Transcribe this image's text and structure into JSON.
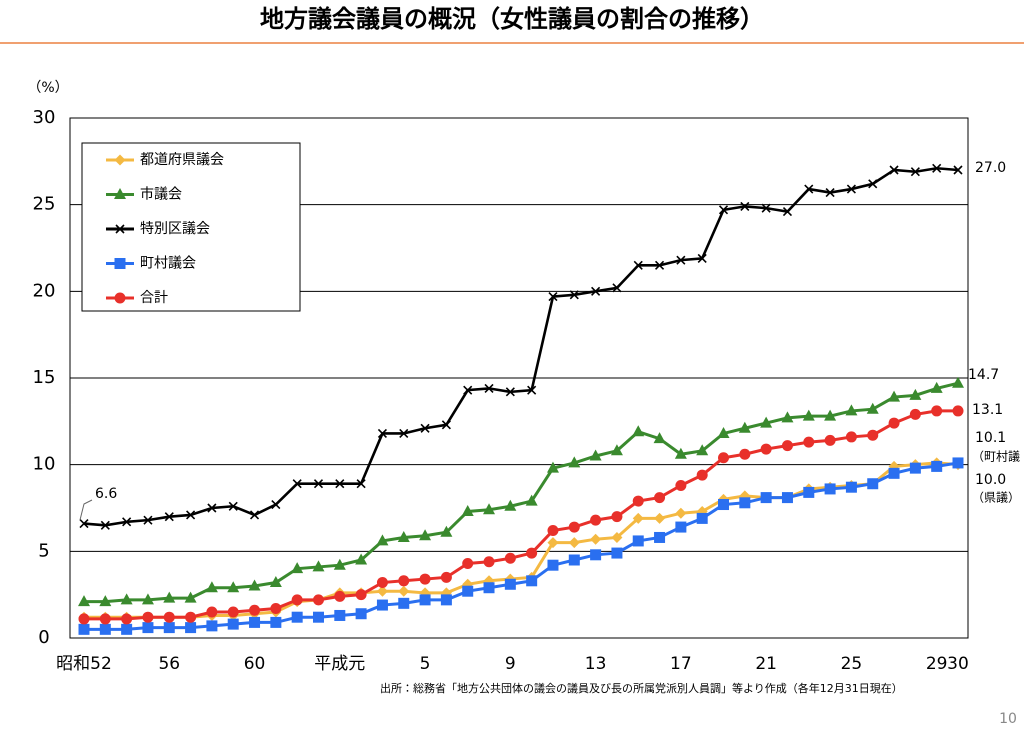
{
  "title": "地方議会議員の概況（女性議員の割合の推移）",
  "page_number": "10",
  "chart_data": {
    "type": "line",
    "y_label": "（%）",
    "source": "出所：総務省「地方公共団体の議会の議員及び長の所属党派別人員調」等より作成（各年12月31日現在）",
    "categories": [
      "昭和52",
      null,
      null,
      null,
      "56",
      null,
      null,
      null,
      "60",
      null,
      null,
      null,
      "平成元",
      null,
      null,
      null,
      "5",
      null,
      null,
      null,
      "9",
      null,
      null,
      null,
      "13",
      null,
      null,
      null,
      "17",
      null,
      null,
      null,
      "21",
      null,
      null,
      null,
      "25",
      null,
      null,
      null,
      "29",
      "30"
    ],
    "ylim": [
      0,
      30
    ],
    "yticks": [
      0,
      5,
      10,
      15,
      20,
      25,
      30
    ],
    "grid": true,
    "legend": "top-left",
    "series": [
      {
        "name": "都道府県議会",
        "color": "#f4b942",
        "marker": "diamond",
        "values": [
          1.2,
          1.2,
          1.2,
          1.2,
          1.2,
          1.2,
          1.3,
          1.3,
          1.4,
          1.5,
          2.1,
          2.2,
          2.6,
          2.6,
          2.7,
          2.7,
          2.6,
          2.6,
          3.1,
          3.3,
          3.4,
          3.5,
          5.5,
          5.5,
          5.7,
          5.8,
          6.9,
          6.9,
          7.2,
          7.3,
          8.0,
          8.2,
          8.1,
          8.1,
          8.6,
          8.7,
          8.8,
          8.9,
          9.9,
          10.0,
          10.1,
          10.0
        ]
      },
      {
        "name": "市議会",
        "color": "#3a8a2e",
        "marker": "triangle",
        "values": [
          2.1,
          2.1,
          2.2,
          2.2,
          2.3,
          2.3,
          2.9,
          2.9,
          3.0,
          3.2,
          4.0,
          4.1,
          4.2,
          4.5,
          5.6,
          5.8,
          5.9,
          6.1,
          7.3,
          7.4,
          7.6,
          7.9,
          9.8,
          10.1,
          10.5,
          10.8,
          11.9,
          11.5,
          10.6,
          10.8,
          11.8,
          12.1,
          12.4,
          12.7,
          12.8,
          12.8,
          13.1,
          13.2,
          13.9,
          14.0,
          14.4,
          14.7
        ]
      },
      {
        "name": "特別区議会",
        "color": "#000000",
        "marker": "cross",
        "values": [
          6.6,
          6.5,
          6.7,
          6.8,
          7.0,
          7.1,
          7.5,
          7.6,
          7.1,
          7.7,
          8.9,
          8.9,
          8.9,
          8.9,
          11.8,
          11.8,
          12.1,
          12.3,
          14.3,
          14.4,
          14.2,
          14.3,
          19.7,
          19.8,
          20.0,
          20.2,
          21.5,
          21.5,
          21.8,
          21.9,
          24.7,
          24.9,
          24.8,
          24.6,
          25.9,
          25.7,
          25.9,
          26.2,
          27.0,
          26.9,
          27.1,
          27.0
        ]
      },
      {
        "name": "町村議会",
        "color": "#2a6ff0",
        "marker": "square",
        "values": [
          0.5,
          0.5,
          0.5,
          0.6,
          0.6,
          0.6,
          0.7,
          0.8,
          0.9,
          0.9,
          1.2,
          1.2,
          1.3,
          1.4,
          1.9,
          2.0,
          2.2,
          2.2,
          2.7,
          2.9,
          3.1,
          3.3,
          4.2,
          4.5,
          4.8,
          4.9,
          5.6,
          5.8,
          6.4,
          6.9,
          7.7,
          7.8,
          8.1,
          8.1,
          8.4,
          8.6,
          8.7,
          8.9,
          9.5,
          9.8,
          9.9,
          10.1
        ]
      },
      {
        "name": "合計",
        "color": "#e8302a",
        "marker": "circle",
        "values": [
          1.1,
          1.1,
          1.1,
          1.2,
          1.2,
          1.2,
          1.5,
          1.5,
          1.6,
          1.7,
          2.2,
          2.2,
          2.4,
          2.5,
          3.2,
          3.3,
          3.4,
          3.5,
          4.3,
          4.4,
          4.6,
          4.9,
          6.2,
          6.4,
          6.8,
          7.0,
          7.9,
          8.1,
          8.8,
          9.4,
          10.4,
          10.6,
          10.9,
          11.1,
          11.3,
          11.4,
          11.6,
          11.7,
          12.4,
          12.9,
          13.1,
          13.1
        ]
      }
    ],
    "annotations": [
      "6.6",
      "27.0",
      "14.7",
      "13.1",
      "10.1",
      "（町村議",
      "10.0",
      "（県議）"
    ]
  }
}
